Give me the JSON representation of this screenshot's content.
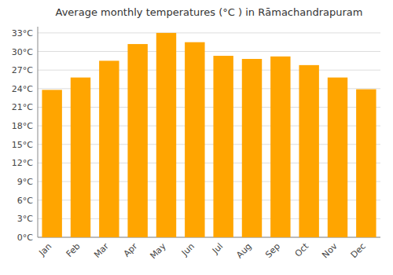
{
  "chart_data": {
    "type": "bar",
    "title": "Average monthly temperatures (°C ) in Rāmachandrapuram",
    "categories": [
      "Jan",
      "Feb",
      "Mar",
      "Apr",
      "May",
      "Jun",
      "Jul",
      "Aug",
      "Sep",
      "Oct",
      "Nov",
      "Dec"
    ],
    "values": [
      23.8,
      25.8,
      28.5,
      31.2,
      33.0,
      31.5,
      29.3,
      28.8,
      29.2,
      27.8,
      25.8,
      23.9
    ],
    "color": "#FFA500",
    "ylim": [
      0,
      34
    ],
    "yticks": [
      {
        "value": 0,
        "label": "0°C"
      },
      {
        "value": 3,
        "label": "3°C"
      },
      {
        "value": 6,
        "label": "6°C"
      },
      {
        "value": 9,
        "label": "9°C"
      },
      {
        "value": 12,
        "label": "12°C"
      },
      {
        "value": 15,
        "label": "15°C"
      },
      {
        "value": 18,
        "label": "18°C"
      },
      {
        "value": 21,
        "label": "21°C"
      },
      {
        "value": 24,
        "label": "24°C"
      },
      {
        "value": 27,
        "label": "27°C"
      },
      {
        "value": 30,
        "label": "30°C"
      },
      {
        "value": 33,
        "label": "33°C"
      }
    ],
    "grid": true
  }
}
